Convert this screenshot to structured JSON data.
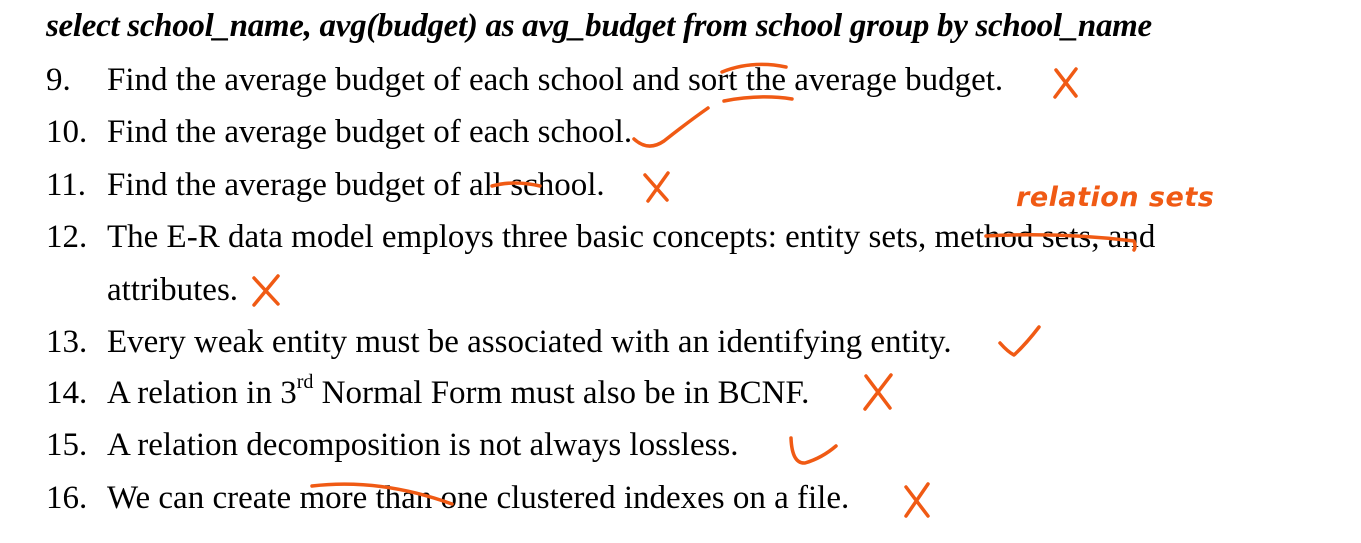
{
  "heading": "select school_name, avg(budget) as avg_budget from school group by school_name",
  "items": [
    {
      "num": "9.",
      "text": "Find the average budget of each school and sort the average budget."
    },
    {
      "num": "10.",
      "text": "Find the average budget of each school."
    },
    {
      "num": "11.",
      "text": "Find the average budget of all school."
    },
    {
      "num": "12.",
      "text": "The E-R data model employs three basic concepts: entity sets, method sets, and",
      "continuation": "attributes."
    },
    {
      "num": "13.",
      "text": "Every weak entity must be associated with an identifying entity."
    },
    {
      "num": "14.",
      "text_before": "A relation in 3",
      "sup": "rd",
      "text_after": " Normal Form must also be in BCNF."
    },
    {
      "num": "15.",
      "text": "A relation decomposition is not always lossless."
    },
    {
      "num": "16.",
      "text": "We can create more than one clustered indexes on a file."
    }
  ],
  "annotations": {
    "correction_12": "relation sets",
    "ink_color": "#f05a14"
  }
}
